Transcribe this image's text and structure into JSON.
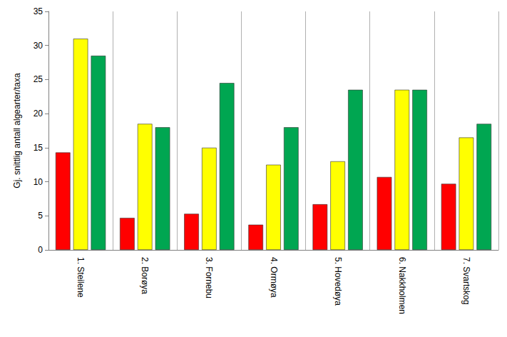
{
  "chart_data": {
    "type": "bar",
    "y_label": "Gj. snittlig antall algearter/taxa",
    "categories": [
      "1. Steilene",
      "2. Borøya",
      "3. Fornebu",
      "4. Ormøya",
      "5. Hovedøya",
      "6. Nakkholmen",
      "7. Svartskog"
    ],
    "series": [
      {
        "color": "#ff0000",
        "values": [
          14.3,
          4.7,
          5.3,
          3.7,
          6.7,
          10.7,
          9.7
        ]
      },
      {
        "color": "#ffff00",
        "values": [
          31,
          18.5,
          15,
          12.5,
          13,
          23.5,
          16.5
        ]
      },
      {
        "color": "#00a651",
        "values": [
          28.5,
          18,
          24.5,
          18,
          23.5,
          23.5,
          18.5
        ]
      }
    ],
    "ylim": [
      0,
      35
    ],
    "yticks": [
      0,
      5,
      10,
      15,
      20,
      25,
      30,
      35
    ],
    "grid": "x"
  }
}
